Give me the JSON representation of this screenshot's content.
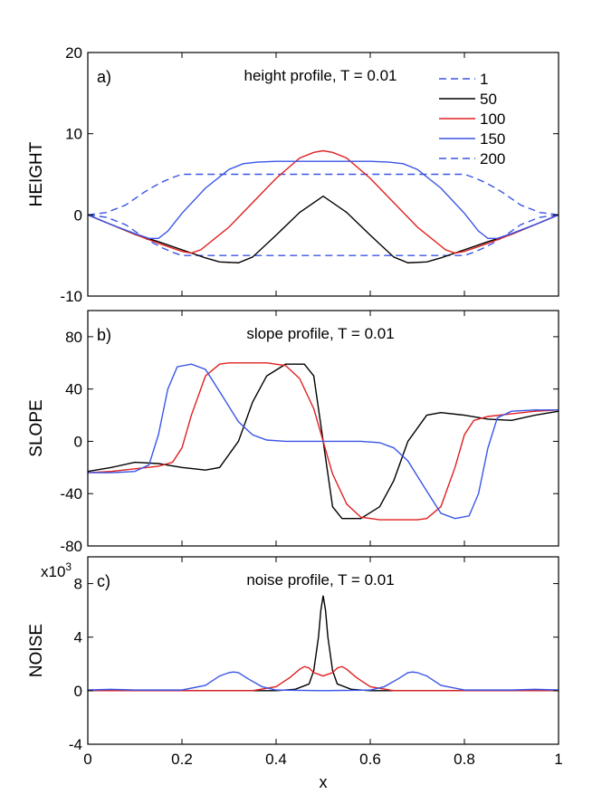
{
  "chart_data": [
    {
      "type": "line",
      "panel_label": "a)",
      "title": "height profile, T = 0.01",
      "ylabel": "HEIGHT",
      "xlabel": "",
      "xlim": [
        0,
        1
      ],
      "ylim": [
        -10,
        20
      ],
      "yticks": [
        -10,
        0,
        10,
        20
      ],
      "ytick_labels": [
        "-10",
        "0",
        "10",
        "20"
      ],
      "xticks": [
        0,
        0.2,
        0.4,
        0.6,
        0.8,
        1
      ],
      "legend": {
        "position": "top-right",
        "entries": [
          {
            "label": "1",
            "color": "#3a55e6",
            "dash": true
          },
          {
            "label": "50",
            "color": "#000000",
            "dash": false
          },
          {
            "label": "100",
            "color": "#e02020",
            "dash": false
          },
          {
            "label": "150",
            "color": "#3a55e6",
            "dash": false
          },
          {
            "label": "200",
            "color": "#3a55e6",
            "dash": true
          }
        ]
      },
      "series": [
        {
          "name": "1",
          "color": "#3a55e6",
          "dash": true,
          "x": [
            0,
            0.04,
            0.08,
            0.1,
            0.12,
            0.14,
            0.16,
            0.18,
            0.2,
            0.8,
            0.82,
            0.84,
            0.86,
            0.88,
            0.9,
            0.92,
            0.96,
            1
          ],
          "y": [
            0,
            -0.3,
            -1.2,
            -2.0,
            -2.8,
            -3.5,
            -4.1,
            -4.6,
            -5,
            -5,
            -4.6,
            -4.1,
            -3.5,
            -2.8,
            -2.0,
            -1.2,
            -0.3,
            0
          ]
        },
        {
          "name": "200",
          "color": "#3a55e6",
          "dash": true,
          "x": [
            0,
            0.04,
            0.08,
            0.1,
            0.12,
            0.14,
            0.16,
            0.18,
            0.2,
            0.8,
            0.82,
            0.84,
            0.86,
            0.88,
            0.9,
            0.92,
            0.96,
            1
          ],
          "y": [
            0,
            0.3,
            1.2,
            2.0,
            2.8,
            3.5,
            4.1,
            4.6,
            5,
            5,
            4.6,
            4.1,
            3.5,
            2.8,
            2.0,
            1.2,
            0.3,
            0
          ]
        },
        {
          "name": "50",
          "color": "#000000",
          "dash": false,
          "x": [
            0,
            0.05,
            0.1,
            0.15,
            0.2,
            0.25,
            0.28,
            0.32,
            0.35,
            0.4,
            0.45,
            0.5,
            0.55,
            0.6,
            0.65,
            0.68,
            0.72,
            0.75,
            0.8,
            0.85,
            0.9,
            0.95,
            1
          ],
          "y": [
            0,
            -1.2,
            -2.4,
            -3.3,
            -4.3,
            -5.3,
            -5.8,
            -5.9,
            -5.2,
            -2.5,
            0.3,
            2.3,
            0.3,
            -2.5,
            -5.2,
            -5.9,
            -5.8,
            -5.3,
            -4.3,
            -3.3,
            -2.4,
            -1.2,
            0
          ]
        },
        {
          "name": "100",
          "color": "#e02020",
          "dash": false,
          "x": [
            0,
            0.05,
            0.1,
            0.15,
            0.2,
            0.22,
            0.24,
            0.3,
            0.35,
            0.4,
            0.45,
            0.48,
            0.5,
            0.52,
            0.55,
            0.6,
            0.65,
            0.7,
            0.76,
            0.78,
            0.8,
            0.85,
            0.9,
            0.95,
            1
          ],
          "y": [
            0,
            -1.2,
            -2.4,
            -3.5,
            -4.5,
            -4.7,
            -4.3,
            -1.5,
            1.5,
            4.5,
            7.0,
            7.7,
            7.9,
            7.7,
            7.0,
            4.5,
            1.5,
            -1.5,
            -4.3,
            -4.7,
            -4.5,
            -3.5,
            -2.4,
            -1.2,
            0
          ]
        },
        {
          "name": "150",
          "color": "#3a55e6",
          "dash": false,
          "x": [
            0,
            0.05,
            0.1,
            0.13,
            0.15,
            0.17,
            0.2,
            0.25,
            0.3,
            0.33,
            0.36,
            0.4,
            0.5,
            0.6,
            0.64,
            0.67,
            0.7,
            0.75,
            0.8,
            0.83,
            0.85,
            0.87,
            0.9,
            0.95,
            1
          ],
          "y": [
            0,
            -1.2,
            -2.3,
            -2.9,
            -2.9,
            -2.0,
            0.2,
            3.3,
            5.6,
            6.3,
            6.5,
            6.6,
            6.6,
            6.6,
            6.5,
            6.3,
            5.6,
            3.3,
            0.2,
            -2.0,
            -2.9,
            -2.9,
            -2.3,
            -1.2,
            0
          ]
        }
      ]
    },
    {
      "type": "line",
      "panel_label": "b)",
      "title": "slope profile, T = 0.01",
      "ylabel": "SLOPE",
      "xlabel": "",
      "xlim": [
        0,
        1
      ],
      "ylim": [
        -80,
        100
      ],
      "yticks": [
        -80,
        -40,
        0,
        40,
        80
      ],
      "ytick_labels": [
        "-80",
        "-40",
        "0",
        "40",
        "80"
      ],
      "xticks": [
        0,
        0.2,
        0.4,
        0.6,
        0.8,
        1
      ],
      "series": [
        {
          "name": "50",
          "color": "#000000",
          "dash": false,
          "x": [
            0,
            0.05,
            0.1,
            0.15,
            0.2,
            0.25,
            0.28,
            0.32,
            0.35,
            0.38,
            0.42,
            0.46,
            0.48,
            0.49,
            0.5,
            0.51,
            0.52,
            0.54,
            0.58,
            0.62,
            0.65,
            0.68,
            0.72,
            0.75,
            0.8,
            0.85,
            0.9,
            0.95,
            1
          ],
          "y": [
            -23,
            -20,
            -16,
            -17,
            -20,
            -22,
            -20,
            0,
            30,
            50,
            59,
            59,
            50,
            25,
            0,
            -25,
            -50,
            -59,
            -59,
            -50,
            -30,
            0,
            20,
            22,
            20,
            17,
            16,
            20,
            23
          ]
        },
        {
          "name": "100",
          "color": "#e02020",
          "dash": false,
          "x": [
            0,
            0.05,
            0.1,
            0.15,
            0.18,
            0.2,
            0.22,
            0.25,
            0.28,
            0.3,
            0.38,
            0.42,
            0.45,
            0.48,
            0.5,
            0.52,
            0.55,
            0.58,
            0.62,
            0.7,
            0.72,
            0.75,
            0.78,
            0.8,
            0.82,
            0.85,
            0.9,
            0.95,
            1
          ],
          "y": [
            -24,
            -23,
            -21,
            -19,
            -16,
            -5,
            20,
            50,
            59,
            60,
            60,
            58,
            48,
            25,
            0,
            -25,
            -48,
            -58,
            -60,
            -60,
            -59,
            -50,
            -20,
            5,
            16,
            19,
            21,
            23,
            24
          ]
        },
        {
          "name": "150",
          "color": "#3a55e6",
          "dash": false,
          "x": [
            0,
            0.05,
            0.1,
            0.13,
            0.15,
            0.17,
            0.19,
            0.22,
            0.25,
            0.28,
            0.32,
            0.35,
            0.38,
            0.42,
            0.45,
            0.5,
            0.55,
            0.58,
            0.62,
            0.65,
            0.68,
            0.72,
            0.75,
            0.78,
            0.81,
            0.83,
            0.85,
            0.87,
            0.9,
            0.95,
            1
          ],
          "y": [
            -24,
            -24,
            -23,
            -18,
            5,
            40,
            57,
            59,
            55,
            38,
            15,
            5,
            1,
            0,
            0,
            0,
            0,
            0,
            -1,
            -5,
            -15,
            -38,
            -55,
            -59,
            -57,
            -40,
            -5,
            18,
            23,
            24,
            24
          ]
        }
      ]
    },
    {
      "type": "line",
      "panel_label": "c)",
      "title": "noise profile, T = 0.01",
      "ylabel": "NOISE",
      "xlabel": "x",
      "scale_label": "x10",
      "scale_exponent": "3",
      "xlim": [
        0,
        1
      ],
      "ylim": [
        -4,
        10
      ],
      "yticks": [
        -4,
        0,
        4,
        8
      ],
      "ytick_labels": [
        "-4",
        "0",
        "4",
        "8"
      ],
      "xticks": [
        0,
        0.2,
        0.4,
        0.6,
        0.8,
        1
      ],
      "xtick_labels": [
        "0",
        "0.2",
        "0.4",
        "0.6",
        "0.8",
        "1"
      ],
      "series": [
        {
          "name": "50",
          "color": "#000000",
          "dash": false,
          "x": [
            0,
            0.4,
            0.44,
            0.47,
            0.48,
            0.49,
            0.495,
            0.5,
            0.505,
            0.51,
            0.52,
            0.53,
            0.56,
            0.6,
            1
          ],
          "y": [
            0,
            0,
            0.1,
            0.5,
            1.5,
            4.0,
            6.0,
            7.1,
            6.0,
            4.0,
            1.5,
            0.5,
            0.1,
            0,
            0
          ]
        },
        {
          "name": "100",
          "color": "#e02020",
          "dash": false,
          "x": [
            0,
            0.35,
            0.4,
            0.43,
            0.45,
            0.46,
            0.47,
            0.48,
            0.5,
            0.52,
            0.53,
            0.54,
            0.55,
            0.57,
            0.6,
            0.65,
            1
          ],
          "y": [
            0,
            0,
            0.3,
            1.0,
            1.6,
            1.8,
            1.7,
            1.35,
            1.1,
            1.35,
            1.7,
            1.8,
            1.6,
            1.0,
            0.3,
            0,
            0
          ]
        },
        {
          "name": "150",
          "color": "#3a55e6",
          "dash": false,
          "x": [
            0,
            0.05,
            0.1,
            0.2,
            0.25,
            0.28,
            0.3,
            0.31,
            0.32,
            0.34,
            0.37,
            0.4,
            0.5,
            0.6,
            0.63,
            0.66,
            0.68,
            0.69,
            0.7,
            0.72,
            0.75,
            0.8,
            0.9,
            0.95,
            1
          ],
          "y": [
            0.05,
            0.1,
            0.05,
            0.05,
            0.4,
            1.1,
            1.35,
            1.4,
            1.35,
            0.9,
            0.3,
            0.05,
            0,
            0.05,
            0.3,
            0.9,
            1.35,
            1.4,
            1.35,
            1.1,
            0.4,
            0.05,
            0.05,
            0.1,
            0.05
          ]
        }
      ]
    }
  ]
}
